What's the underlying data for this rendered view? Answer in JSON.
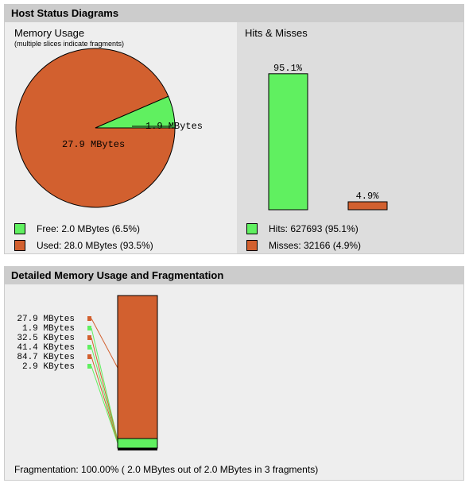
{
  "host_status": {
    "header": "Host Status Diagrams",
    "memory": {
      "title": "Memory Usage",
      "note": "(multiple slices indicate fragments)",
      "pie_labels": {
        "free": "1.9 MBytes",
        "used": "27.9 MBytes"
      },
      "legend": {
        "free": "Free: 2.0 MBytes (6.5%)",
        "used": "Used: 28.0 MBytes (93.5%)"
      }
    },
    "hits": {
      "title": "Hits & Misses",
      "bar_labels": {
        "hits": "95.1%",
        "misses": "4.9%"
      },
      "legend": {
        "hits": "Hits: 627693 (95.1%)",
        "misses": "Misses: 32166 (4.9%)"
      }
    }
  },
  "detail": {
    "header": "Detailed Memory Usage and Fragmentation",
    "fragment_labels": [
      "27.9 MBytes",
      "1.9 MBytes",
      "32.5 KBytes",
      "41.4 KBytes",
      "84.7 KBytes",
      "2.9 KBytes"
    ],
    "fragmentation_text": "Fragmentation: 100.00% ( 2.0 MBytes out of 2.0 MBytes in 3 fragments)"
  },
  "colors": {
    "free": "#60f060",
    "used": "#d2602f",
    "panel": "#eeeeee",
    "header": "#cccccc"
  },
  "chart_data": [
    {
      "type": "pie",
      "title": "Memory Usage",
      "categories": [
        "Free",
        "Used"
      ],
      "values": [
        6.5,
        93.5
      ],
      "slice_labels": [
        "1.9 MBytes",
        "27.9 MBytes"
      ]
    },
    {
      "type": "bar",
      "title": "Hits & Misses",
      "categories": [
        "Hits",
        "Misses"
      ],
      "values": [
        95.1,
        4.9
      ],
      "ylim": [
        0,
        100
      ]
    }
  ]
}
